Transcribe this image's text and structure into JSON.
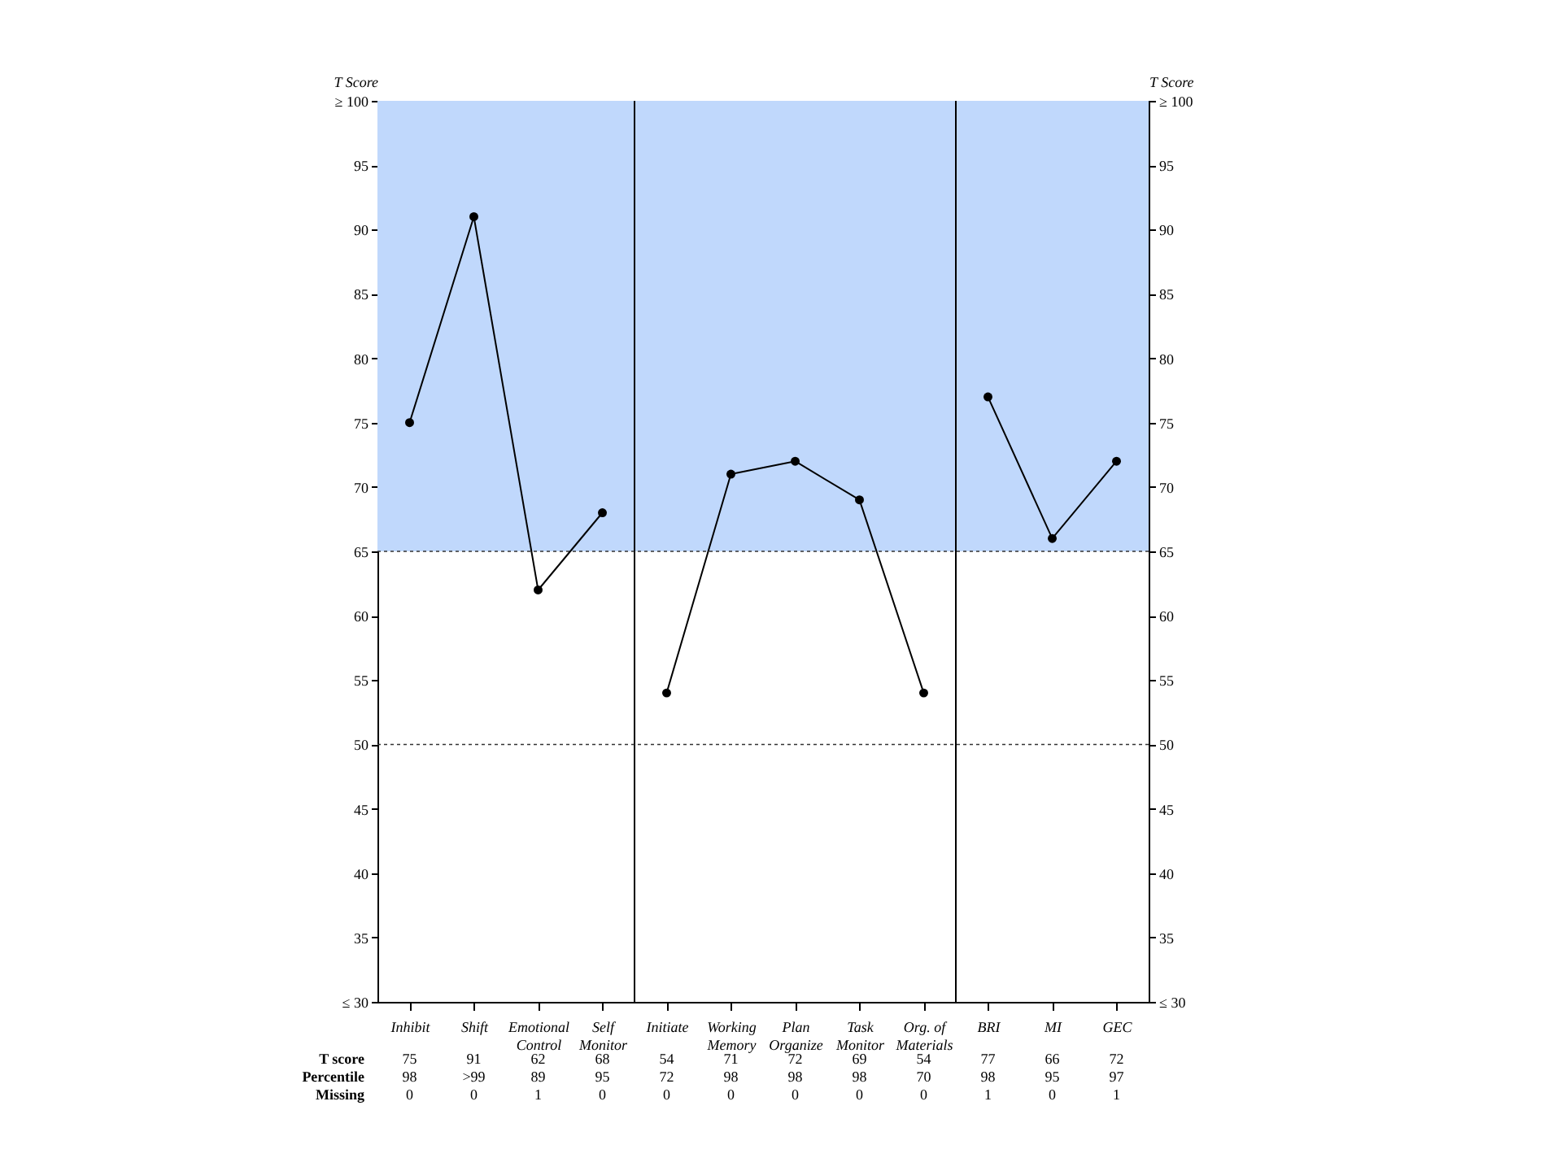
{
  "chart_data": {
    "type": "line",
    "ylabel": "T Score",
    "y2label": "T Score",
    "categories": [
      "Inhibit",
      "Shift",
      "Emotional Control",
      "Self Monitor",
      "Initiate",
      "Working Memory",
      "Plan Organize",
      "Task Monitor",
      "Org. of Materials",
      "BRI",
      "MI",
      "GEC"
    ],
    "series": [
      {
        "color": "#000000",
        "values": [
          75,
          91,
          62,
          68,
          null,
          null,
          null,
          null,
          null,
          null,
          null,
          null
        ]
      },
      {
        "color": "#000000",
        "values": [
          null,
          null,
          null,
          null,
          54,
          71,
          72,
          69,
          54,
          null,
          null,
          null
        ]
      },
      {
        "color": "#000000",
        "values": [
          null,
          null,
          null,
          null,
          null,
          null,
          null,
          null,
          null,
          77,
          66,
          72
        ]
      }
    ],
    "ylim": [
      30,
      100
    ],
    "yticks": [
      {
        "value": 30,
        "label": "≤ 30"
      },
      35,
      40,
      45,
      50,
      55,
      60,
      65,
      70,
      75,
      80,
      85,
      90,
      95,
      {
        "value": 100,
        "label": "≥ 100"
      }
    ],
    "y2lim": [
      30,
      100
    ],
    "y2ticks": [
      {
        "value": 30,
        "label": "≤ 30"
      },
      35,
      40,
      45,
      50,
      55,
      60,
      65,
      70,
      75,
      80,
      85,
      90,
      95,
      {
        "value": 100,
        "label": "≥ 100"
      }
    ],
    "bands": [
      {
        "axis": "y",
        "from": 65,
        "to": 100,
        "color": "#c0d8fc"
      }
    ],
    "ref_lines": [
      {
        "axis": "y",
        "value": 65,
        "line_style": "dotted"
      },
      {
        "axis": "y",
        "value": 50,
        "line_style": "dotted"
      }
    ],
    "annotations": [
      "T score",
      "Percentile",
      "Missing",
      "75",
      "91",
      "62",
      "68",
      "54",
      "71",
      "72",
      "69",
      "54",
      "77",
      "66",
      "72",
      "98",
      ">99",
      "89",
      "95",
      "72",
      "98",
      "98",
      "98",
      "70",
      "98",
      "95",
      "97",
      "0",
      "0",
      "1",
      "0",
      "0",
      "0",
      "0",
      "0",
      "0",
      "1",
      "0",
      "1"
    ],
    "grid": false,
    "marker": "circle",
    "line_style": "solid"
  }
}
